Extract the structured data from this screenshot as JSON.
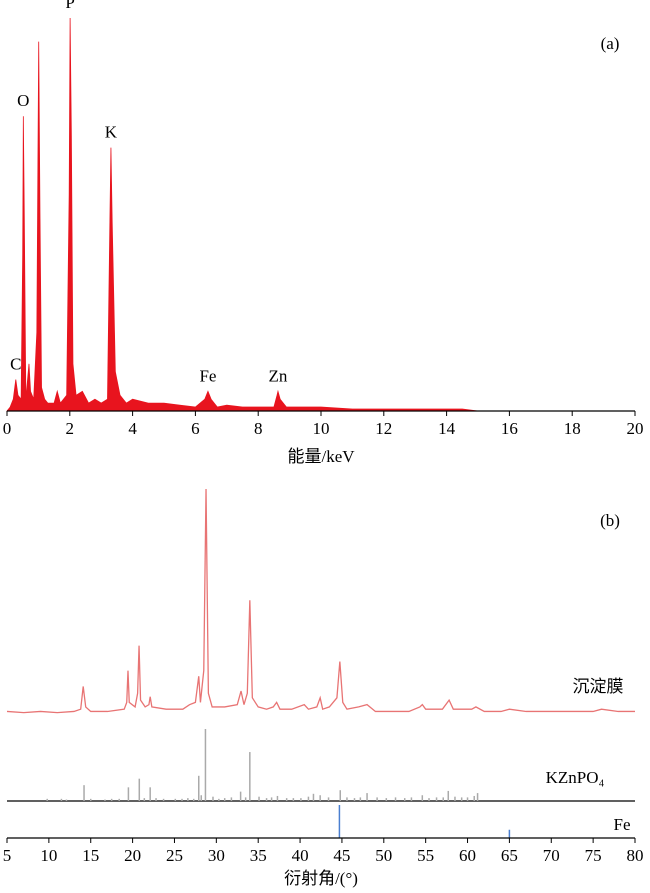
{
  "chart_data": [
    {
      "type": "area",
      "label": "(a)",
      "x_label": "能量/keV",
      "color": "#e8141e",
      "xlim": [
        0,
        20
      ],
      "xticks": [
        0,
        2,
        4,
        6,
        8,
        10,
        12,
        14,
        16,
        18,
        20
      ],
      "ylim": [
        0,
        100
      ],
      "x": [
        0,
        0.1,
        0.2,
        0.28,
        0.35,
        0.45,
        0.5,
        0.52,
        0.55,
        0.6,
        0.7,
        0.75,
        0.85,
        0.95,
        1.01,
        1.05,
        1.1,
        1.2,
        1.3,
        1.5,
        1.6,
        1.7,
        1.9,
        1.98,
        2.01,
        2.05,
        2.1,
        2.2,
        2.4,
        2.6,
        2.8,
        3.0,
        3.2,
        3.28,
        3.31,
        3.35,
        3.45,
        3.6,
        3.8,
        4.0,
        4.5,
        5.0,
        5.5,
        6.0,
        6.3,
        6.4,
        6.5,
        6.7,
        7.0,
        7.5,
        8.0,
        8.5,
        8.6,
        8.63,
        8.7,
        8.9,
        9.5,
        10,
        11,
        12,
        13,
        14,
        14.5,
        15,
        20
      ],
      "values": [
        0,
        1,
        3,
        8,
        4,
        3,
        40,
        75,
        50,
        3,
        12,
        5,
        3,
        20,
        94,
        50,
        6,
        3,
        2,
        2,
        5,
        2,
        4,
        55,
        100,
        70,
        12,
        4,
        5,
        2,
        3,
        2,
        3,
        50,
        67,
        48,
        10,
        4,
        2,
        3,
        2,
        2,
        1.5,
        1,
        3,
        5,
        3,
        1,
        1.5,
        1,
        1,
        1,
        4,
        5,
        3,
        1,
        1,
        1,
        0.5,
        0.5,
        0.5,
        0.5,
        0.5,
        0,
        0
      ],
      "peaks": [
        {
          "label": "C",
          "x": 0.28
        },
        {
          "label": "O",
          "x": 0.52
        },
        {
          "label": "P",
          "x": 2.01
        },
        {
          "label": "K",
          "x": 3.31
        },
        {
          "label": "Fe",
          "x": 6.4
        },
        {
          "label": "Zn",
          "x": 8.63
        }
      ]
    },
    {
      "type": "line",
      "label": "(b)",
      "x_label": "衍射角/(°)",
      "xlim": [
        5,
        80
      ],
      "xticks": [
        5,
        10,
        15,
        20,
        25,
        30,
        35,
        40,
        45,
        50,
        55,
        60,
        65,
        70,
        75,
        80
      ],
      "ylim": [
        0,
        100
      ],
      "series": [
        {
          "name": "沉淀膜",
          "color": "#e87474",
          "kind": "line",
          "x": [
            5,
            7,
            9,
            11,
            13,
            13.8,
            14.1,
            14.4,
            15,
            17,
            19,
            19.3,
            19.45,
            19.6,
            20.3,
            20.6,
            20.77,
            20.95,
            21.5,
            21.95,
            22.1,
            22.3,
            24,
            26,
            26.8,
            27.5,
            27.9,
            28.1,
            28.5,
            28.77,
            29.05,
            29.5,
            31,
            32.5,
            32.95,
            33.3,
            33.7,
            34.0,
            34.3,
            35,
            36,
            36.8,
            37.2,
            37.6,
            39,
            40.5,
            41,
            42,
            42.4,
            42.7,
            43.5,
            44.4,
            44.75,
            45.1,
            45.6,
            47,
            48,
            49,
            51,
            53,
            54.3,
            54.6,
            55,
            57,
            57.8,
            58.3,
            60.5,
            61,
            62,
            64,
            65,
            67,
            70,
            72,
            75,
            76,
            78,
            80
          ],
          "values": [
            2,
            1.5,
            2,
            1.5,
            2,
            3,
            13,
            4,
            2,
            2,
            3,
            6,
            20,
            6,
            4,
            10,
            31,
            7,
            4,
            5,
            8.5,
            4,
            3,
            3,
            5,
            6,
            17.5,
            6,
            20,
            100,
            10,
            4,
            4,
            5,
            11,
            5,
            10,
            51,
            8,
            4,
            3,
            4,
            6,
            3,
            3,
            5,
            3,
            4,
            8,
            3,
            4,
            8,
            24,
            6,
            3,
            4,
            5,
            2,
            2,
            2,
            4,
            5,
            3,
            3,
            7,
            3,
            3,
            4,
            2,
            2,
            3,
            2,
            2,
            2,
            2,
            3,
            2,
            2
          ]
        },
        {
          "name": "KZnPO₄",
          "color": "#aaaaaa",
          "kind": "stick",
          "x": [
            9.8,
            11.5,
            12.1,
            14.2,
            15,
            16.7,
            17.5,
            18.4,
            19.5,
            20.8,
            21.4,
            22.1,
            22.8,
            23.7,
            25.1,
            25.9,
            26.6,
            27.3,
            27.9,
            28.2,
            28.7,
            29.6,
            30.3,
            31.0,
            31.8,
            32.9,
            33.5,
            34.0,
            35.1,
            36.0,
            36.6,
            37.3,
            38.4,
            39.2,
            40.1,
            41.0,
            41.6,
            42.4,
            43.4,
            44.8,
            45.6,
            46.5,
            47.2,
            48.0,
            49.2,
            50.3,
            51.4,
            52.5,
            53.3,
            54.6,
            55.4,
            56.3,
            57.1,
            57.7,
            58.5,
            59.3,
            60.0,
            60.8,
            61.2
          ],
          "values": [
            3,
            3,
            2,
            22,
            3,
            2,
            3,
            3,
            19,
            31,
            4,
            19,
            4,
            3,
            3,
            3,
            4,
            3,
            35,
            8,
            100,
            6,
            3,
            4,
            5,
            13,
            5,
            68,
            6,
            4,
            5,
            7,
            4,
            4,
            4,
            6,
            10,
            8,
            5,
            15,
            5,
            4,
            5,
            11,
            5,
            4,
            5,
            4,
            5,
            8,
            4,
            5,
            5,
            14,
            6,
            5,
            5,
            7,
            11
          ]
        },
        {
          "name": "Fe",
          "color": "#4a7fd0",
          "kind": "stick",
          "x": [
            44.7,
            65.0
          ],
          "values": [
            100,
            25
          ]
        }
      ]
    }
  ]
}
